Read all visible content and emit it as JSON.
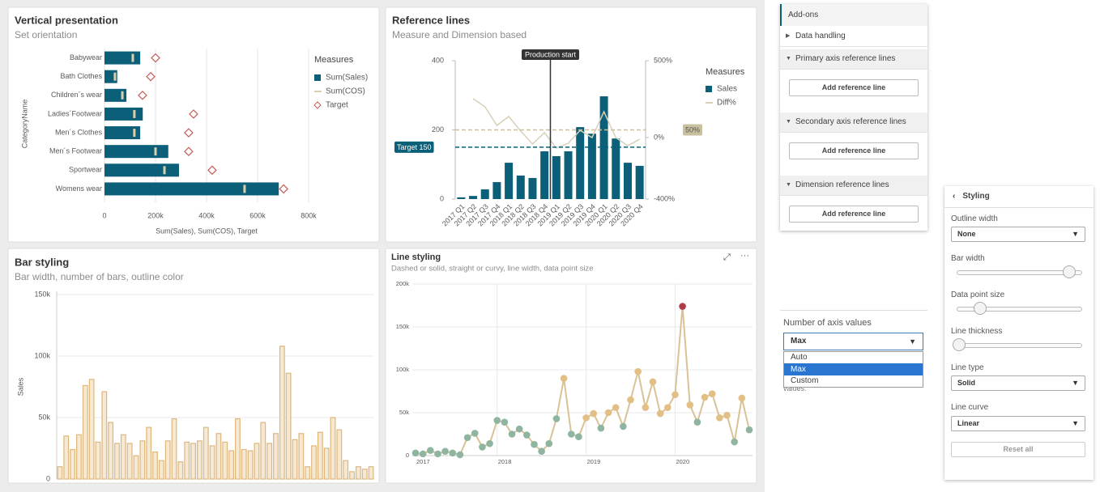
{
  "chart_data": [
    {
      "type": "bar",
      "orientation": "horizontal",
      "title": "Vertical presentation",
      "subtitle": "Set orientation",
      "categories": [
        "Babywear",
        "Bath Clothes",
        "Children´s wear",
        "Ladies´Footwear",
        "Men´s Clothes",
        "Men´s Footwear",
        "Sportwear",
        "Womens wear"
      ],
      "series": [
        {
          "name": "Sum(Sales)",
          "type": "bar",
          "color": "#0b5f78",
          "values": [
            140000,
            50000,
            86000,
            150000,
            140000,
            250000,
            292000,
            683000
          ]
        },
        {
          "name": "Sum(COS)",
          "type": "marker",
          "color": "#d8cfae",
          "values": [
            111000,
            41000,
            70000,
            117000,
            117000,
            200000,
            235000,
            549000
          ]
        },
        {
          "name": "Target",
          "type": "point",
          "color": "#c65b57",
          "values": [
            200000,
            181000,
            149000,
            349000,
            330000,
            330000,
            422000,
            702000
          ]
        }
      ],
      "xlim": [
        0,
        800000
      ],
      "xticks": [
        0,
        {
          "value": 200000,
          "label": "200k"
        },
        {
          "value": 400000,
          "label": "400k"
        },
        {
          "value": 600000,
          "label": "600k"
        },
        {
          "value": 800000,
          "label": "800k"
        }
      ],
      "xlabel": "Sum(Sales), Sum(COS), Target",
      "ylabel": "CategoryName",
      "legend_title": "Measures",
      "legend": "right",
      "grid": true
    },
    {
      "type": "bar",
      "title": "Reference lines",
      "subtitle": "Measure and Dimension based",
      "categories": [
        "2017 Q1",
        "2017 Q2",
        "2017 Q3",
        "2017 Q4",
        "2018 Q1",
        "2018 Q2",
        "2018 Q3",
        "2018 Q4",
        "2019 Q1",
        "2019 Q2",
        "2019 Q3",
        "2019 Q4",
        "2020 Q1",
        "2020 Q2",
        "2020 Q3",
        "2020 Q4"
      ],
      "series": [
        {
          "name": "Sales",
          "type": "bar",
          "color": "#0b5f78",
          "values": [
            5,
            9,
            28,
            49,
            105,
            68,
            61,
            138,
            124,
            138,
            208,
            189,
            297,
            175,
            105,
            96
          ]
        },
        {
          "name": "Diff%",
          "type": "line",
          "axis": "y2",
          "color": "#d9d0b8",
          "values": [
            null,
            253,
            200,
            79,
            137,
            42,
            -42,
            32,
            -68,
            -37,
            47,
            0,
            168,
            0,
            -53,
            -11
          ]
        }
      ],
      "ylim": [
        0,
        400
      ],
      "yticks": [
        0,
        200,
        400
      ],
      "y2lim": [
        -400,
        500
      ],
      "y2ticks": [
        {
          "value": -400,
          "label": "-400%"
        },
        {
          "value": 0,
          "label": "0%"
        },
        {
          "value": 500,
          "label": "500%"
        }
      ],
      "reference_lines": [
        {
          "label": "Target 150",
          "value": 150,
          "axis": "y",
          "color": "#0b5f78"
        },
        {
          "label": "50%",
          "value": 50,
          "axis": "y2",
          "color": "#c9c0a0"
        }
      ],
      "dimension_reference_lines": [
        {
          "label": "Production start",
          "category": "2019 Q1",
          "color": "#333333"
        }
      ],
      "legend_title": "Measures",
      "legend": "right"
    },
    {
      "type": "bar",
      "title": "Bar styling",
      "subtitle": "Bar width, number of bars, outline color",
      "values": [
        10000,
        35000,
        24000,
        36000,
        76000,
        81000,
        30000,
        71000,
        46000,
        29000,
        36000,
        29000,
        19000,
        31000,
        42000,
        22000,
        15000,
        31000,
        49000,
        14000,
        30000,
        29000,
        31000,
        42000,
        27000,
        37000,
        30000,
        23000,
        49000,
        24000,
        23000,
        29000,
        46000,
        29000,
        37000,
        108000,
        86000,
        32000,
        37000,
        10000,
        27000,
        38000,
        25000,
        50000,
        40000,
        15000,
        6000,
        10000,
        8000,
        10000
      ],
      "color": "#f5e9d3",
      "outline_color": "#deb67c",
      "ylim": [
        0,
        150000
      ],
      "yticks": [
        0,
        {
          "value": 50000,
          "label": "50k"
        },
        {
          "value": 100000,
          "label": "100k"
        },
        {
          "value": 150000,
          "label": "150k"
        }
      ],
      "ylabel": "Sales",
      "grid": true
    },
    {
      "type": "line",
      "title": "Line styling",
      "subtitle": "Dashed or solid, straight or curvy, line width, data point size",
      "categories": [
        "2017",
        null,
        null,
        null,
        null,
        null,
        null,
        null,
        null,
        null,
        null,
        "2018",
        null,
        null,
        null,
        null,
        null,
        null,
        null,
        null,
        null,
        null,
        null,
        "2019",
        null,
        null,
        null,
        null,
        null,
        null,
        null,
        null,
        null,
        null,
        null,
        "2020",
        null,
        null,
        null,
        null,
        null,
        null,
        null,
        null,
        null,
        null
      ],
      "values": [
        3000,
        2000,
        6000,
        2000,
        5000,
        3000,
        1000,
        21000,
        26000,
        10000,
        14000,
        41000,
        39000,
        25000,
        31000,
        24000,
        13000,
        5000,
        14000,
        43000,
        90000,
        25000,
        22000,
        44000,
        49000,
        32000,
        50000,
        56000,
        34000,
        65000,
        98000,
        56000,
        86000,
        49000,
        56000,
        71000,
        174000,
        59000,
        39000,
        68000,
        72000,
        44000,
        47000,
        16000,
        67000,
        30000
      ],
      "point_colors": [
        "#8fb5a0",
        "#8fb5a0",
        "#8fb5a0",
        "#8fb5a0",
        "#8fb5a0",
        "#8fb5a0",
        "#8fb5a0",
        "#8fb5a0",
        "#8fb5a0",
        "#8fb5a0",
        "#8fb5a0",
        "#8fb5a0",
        "#8fb5a0",
        "#8fb5a0",
        "#8fb5a0",
        "#8fb5a0",
        "#8fb5a0",
        "#8fb5a0",
        "#8fb5a0",
        "#8fb5a0",
        "#e1bf85",
        "#8fb5a0",
        "#8fb5a0",
        "#e1bf85",
        "#e1bf85",
        "#8fb5a0",
        "#e1bf85",
        "#e1bf85",
        "#8fb5a0",
        "#e1bf85",
        "#e1bf85",
        "#e1bf85",
        "#e1bf85",
        "#e1bf85",
        "#e1bf85",
        "#e1bf85",
        "#b03a48",
        "#e1bf85",
        "#8fb5a0",
        "#e1bf85",
        "#e1bf85",
        "#e1bf85",
        "#e1bf85",
        "#8fb5a0",
        "#e1bf85",
        "#8fb5a0"
      ],
      "color": "#d9c295",
      "ylim": [
        0,
        200000
      ],
      "yticks": [
        0,
        {
          "value": 50000,
          "label": "50k"
        },
        {
          "value": 100000,
          "label": "100k"
        },
        {
          "value": 150000,
          "label": "150k"
        },
        {
          "value": 200000,
          "label": "200k"
        }
      ],
      "grid": true
    }
  ],
  "addons": {
    "title": "Add-ons",
    "sections": [
      {
        "label": "Data handling"
      },
      {
        "label": "Primary axis reference lines",
        "button": "Add reference line"
      },
      {
        "label": "Secondary axis reference lines",
        "button": "Add reference line"
      },
      {
        "label": "Dimension reference lines",
        "button": "Add reference line"
      }
    ]
  },
  "axis_values": {
    "label": "Number of axis values",
    "selected": "Max",
    "options": [
      "Auto",
      "Max",
      "Custom"
    ],
    "hint": "values."
  },
  "styling": {
    "title": "Styling",
    "outline_width": {
      "label": "Outline width",
      "value": "None"
    },
    "bar_width": {
      "label": "Bar width"
    },
    "data_point_size": {
      "label": "Data point size"
    },
    "line_thickness": {
      "label": "Line thickness"
    },
    "line_type": {
      "label": "Line type",
      "value": "Solid"
    },
    "line_curve": {
      "label": "Line curve",
      "value": "Linear"
    },
    "reset": "Reset all"
  }
}
